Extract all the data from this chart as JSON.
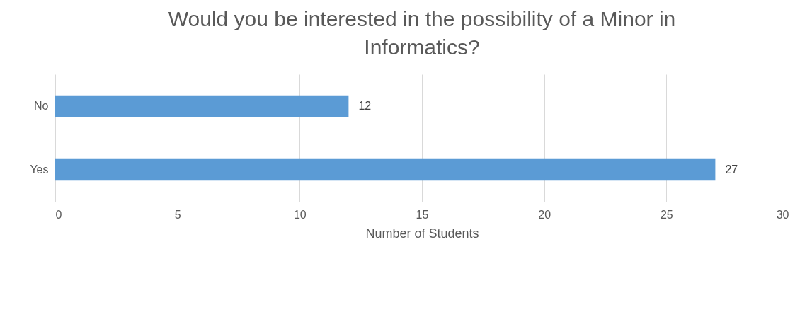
{
  "chart_data": {
    "type": "bar",
    "orientation": "horizontal",
    "title": "Would you be interested in the possibility of a Minor in Informatics?",
    "xlabel": "Number of Students",
    "categories": [
      "No",
      "Yes"
    ],
    "values": [
      12,
      27
    ],
    "color": "#5b9bd5",
    "xlim": [
      0,
      30
    ],
    "xticks": [
      0,
      5,
      10,
      15,
      20,
      25,
      30
    ],
    "grid": "x",
    "data_labels": true
  }
}
